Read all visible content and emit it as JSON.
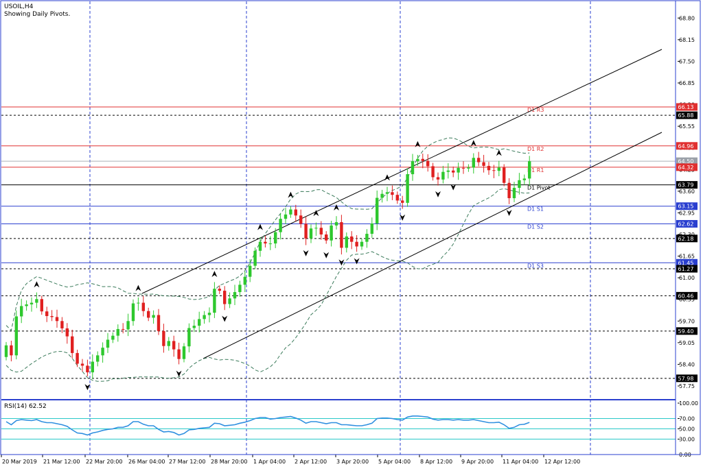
{
  "header": {
    "symbol": "USOIL,H4",
    "subtitle": "Showing Daily Pivots."
  },
  "rsi_panel": {
    "label": "RSI(14) 62.52",
    "levels": [
      70,
      50,
      30
    ],
    "ticks": [
      "100.00",
      "70.00",
      "50.00",
      "30.00",
      "0.00"
    ]
  },
  "colors": {
    "background": "#ffffff",
    "frame": "#2a3fcf",
    "bull": "#2ec82e",
    "bear": "#e02020",
    "resistance": "#e03030",
    "support": "#2a3fcf",
    "pivot": "#000000",
    "bollinger": "#3a7a5a",
    "rsi_line": "#2f8fe0",
    "rsi_levels": "#28c8c8",
    "price_badge_red": "#e03030",
    "price_badge_blue": "#2a3fcf",
    "price_badge_black": "#000000",
    "price_badge_gray": "#9aa0a8"
  },
  "chart_data": {
    "type": "candlestick",
    "title": "USOIL,H4",
    "subtitle": "Showing Daily Pivots.",
    "ylim": [
      57.4,
      69.3
    ],
    "y_ticks": [
      "68.80",
      "68.15",
      "67.50",
      "66.85",
      "66.20",
      "65.55",
      "64.90",
      "64.25",
      "63.60",
      "62.95",
      "62.30",
      "61.65",
      "61.00",
      "60.35",
      "59.70",
      "59.05",
      "58.40",
      "57.75"
    ],
    "x_tick_labels": [
      "20 Mar 2019",
      "21 Mar 12:00",
      "22 Mar 20:00",
      "26 Mar 04:00",
      "27 Mar 12:00",
      "28 Mar 20:00",
      "1 Apr 04:00",
      "2 Apr 12:00",
      "3 Apr 20:00",
      "5 Apr 04:00",
      "8 Apr 12:00",
      "9 Apr 20:00",
      "11 Apr 04:00",
      "12 Apr 12:00"
    ],
    "pivot_lines": [
      {
        "label": "D1 R3",
        "value": 66.13,
        "style": "resistance"
      },
      {
        "label": "D1 R2",
        "value": 64.96,
        "style": "resistance"
      },
      {
        "label": "D1 R1",
        "value": 64.32,
        "style": "resistance"
      },
      {
        "label": "D1 Pivot",
        "value": 63.79,
        "style": "pivot"
      },
      {
        "label": "D1 S1",
        "value": 63.15,
        "style": "support"
      },
      {
        "label": "D1 S2",
        "value": 62.62,
        "style": "support"
      },
      {
        "label": "D1 S3",
        "value": 61.45,
        "style": "support"
      }
    ],
    "level_lines": [
      65.88,
      62.18,
      61.27,
      60.46,
      59.4,
      57.98
    ],
    "current_price": 64.5,
    "price_badges": [
      {
        "text": "66.13",
        "value": 66.13,
        "style": "red"
      },
      {
        "text": "65.88",
        "value": 65.88,
        "style": "black"
      },
      {
        "text": "64.96",
        "value": 64.96,
        "style": "red"
      },
      {
        "text": "64.50",
        "value": 64.5,
        "style": "gray"
      },
      {
        "text": "64.32",
        "value": 64.32,
        "style": "red"
      },
      {
        "text": "63.79",
        "value": 63.79,
        "style": "black"
      },
      {
        "text": "63.15",
        "value": 63.15,
        "style": "blue"
      },
      {
        "text": "62.62",
        "value": 62.62,
        "style": "blue"
      },
      {
        "text": "62.18",
        "value": 62.18,
        "style": "black"
      },
      {
        "text": "61.45",
        "value": 61.45,
        "style": "blue"
      },
      {
        "text": "61.27",
        "value": 61.27,
        "style": "black"
      },
      {
        "text": "60.46",
        "value": 60.46,
        "style": "black"
      },
      {
        "text": "59.40",
        "value": 59.4,
        "style": "black"
      },
      {
        "text": "57.98",
        "value": 57.98,
        "style": "black"
      }
    ],
    "closes": [
      58.97,
      58.67,
      59.84,
      60.15,
      60.2,
      60.25,
      60.36,
      59.99,
      59.85,
      59.82,
      59.7,
      59.48,
      59.24,
      58.74,
      58.42,
      58.36,
      58.16,
      58.48,
      58.67,
      58.9,
      59.14,
      59.26,
      59.46,
      59.45,
      59.7,
      60.23,
      60.25,
      60.0,
      59.8,
      59.88,
      59.4,
      58.95,
      59.1,
      58.85,
      58.56,
      58.94,
      59.49,
      59.56,
      59.76,
      59.88,
      59.95,
      60.67,
      60.61,
      60.21,
      60.38,
      60.57,
      60.79,
      61.03,
      61.36,
      61.81,
      62.08,
      62.03,
      62.03,
      62.37,
      62.77,
      62.9,
      63.05,
      62.87,
      62.62,
      62.18,
      62.48,
      62.5,
      62.3,
      62.12,
      62.57,
      62.67,
      61.9,
      62.24,
      62.08,
      61.94,
      62.08,
      62.32,
      62.63,
      63.4,
      63.52,
      63.57,
      63.49,
      63.32,
      63.25,
      64.11,
      64.5,
      64.57,
      64.51,
      64.35,
      64.02,
      63.95,
      64.18,
      64.22,
      64.16,
      64.3,
      64.28,
      64.31,
      64.6,
      64.47,
      64.36,
      64.23,
      64.21,
      64.31,
      63.85,
      63.39,
      63.7,
      63.93,
      63.98,
      64.5
    ],
    "rsi": {
      "name": "RSI(14)",
      "last": 62.52,
      "ylim": [
        0,
        100
      ],
      "values": [
        64,
        58,
        66,
        68,
        67,
        66,
        68,
        64,
        62,
        62,
        60,
        58,
        55,
        48,
        42,
        41,
        38,
        42,
        44,
        47,
        49,
        50,
        53,
        53,
        56,
        64,
        64,
        59,
        56,
        56,
        49,
        44,
        45,
        43,
        38,
        41,
        48,
        49,
        51,
        52,
        53,
        61,
        60,
        56,
        57,
        58,
        61,
        63,
        66,
        70,
        72,
        72,
        69,
        70,
        72,
        73,
        74,
        71,
        67,
        61,
        64,
        64,
        62,
        60,
        62,
        62,
        58,
        58,
        57,
        56,
        56,
        58,
        61,
        70,
        71,
        71,
        70,
        68,
        67,
        73,
        75,
        75,
        74,
        73,
        69,
        67,
        68,
        68,
        67,
        68,
        67,
        67,
        68,
        66,
        64,
        62,
        62,
        63,
        58,
        51,
        53,
        58,
        59,
        62.52
      ]
    }
  }
}
